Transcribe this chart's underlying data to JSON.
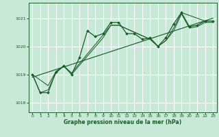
{
  "title": "Graphe pression niveau de la mer (hPa)",
  "bg_color": "#c8e8d8",
  "grid_color": "#ffffff",
  "line_color": "#1a5c28",
  "xlim": [
    -0.5,
    23.5
  ],
  "ylim": [
    1017.65,
    1021.55
  ],
  "yticks": [
    1018,
    1019,
    1020,
    1021
  ],
  "xticks": [
    0,
    1,
    2,
    3,
    4,
    5,
    6,
    7,
    8,
    9,
    10,
    11,
    12,
    13,
    14,
    15,
    16,
    17,
    18,
    19,
    20,
    21,
    22,
    23
  ],
  "series_main": {
    "x": [
      0,
      1,
      2,
      3,
      4,
      5,
      6,
      7,
      8,
      9,
      10,
      11,
      12,
      13,
      14,
      15,
      16,
      17,
      18,
      19,
      20,
      21,
      22,
      23
    ],
    "y": [
      1019.0,
      1018.35,
      1018.35,
      1019.1,
      1019.3,
      1019.0,
      1019.6,
      1020.55,
      1020.35,
      1020.45,
      1020.85,
      1020.85,
      1020.45,
      1020.45,
      1020.25,
      1020.3,
      1020.0,
      1020.3,
      1020.8,
      1021.2,
      1020.7,
      1020.75,
      1020.9,
      1020.9
    ]
  },
  "series_smooth1": {
    "x": [
      0,
      2,
      3,
      4,
      5,
      9,
      10,
      11,
      15,
      16,
      17,
      18,
      19,
      20,
      21,
      22,
      23
    ],
    "y": [
      1019.0,
      1018.6,
      1019.1,
      1019.3,
      1019.05,
      1020.4,
      1020.75,
      1020.75,
      1020.25,
      1020.0,
      1020.2,
      1020.55,
      1021.15,
      1020.65,
      1020.7,
      1020.85,
      1020.85
    ]
  },
  "series_smooth2": {
    "x": [
      0,
      1,
      2,
      3,
      4,
      5,
      9,
      10,
      11,
      15,
      16,
      17,
      18,
      19,
      22,
      23
    ],
    "y": [
      1019.0,
      1018.35,
      1018.45,
      1019.05,
      1019.3,
      1019.0,
      1020.3,
      1020.75,
      1020.75,
      1020.25,
      1020.0,
      1020.2,
      1020.65,
      1021.2,
      1020.9,
      1020.9
    ]
  },
  "trend": {
    "x": [
      0,
      23
    ],
    "y": [
      1018.9,
      1021.0
    ]
  }
}
